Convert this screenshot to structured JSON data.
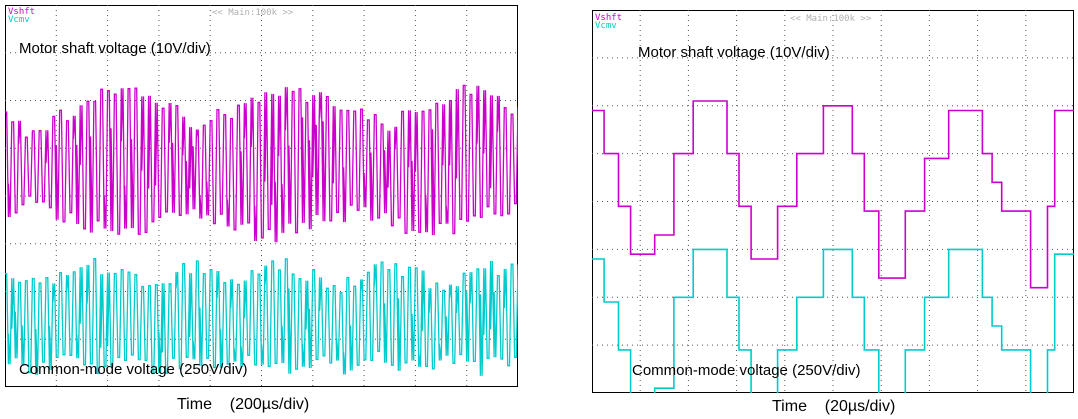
{
  "chart_data": [
    {
      "type": "line",
      "title": "",
      "header": "<< Main:100k >>",
      "channels": [
        {
          "name": "Vshft",
          "color": "#cc00cc"
        },
        {
          "name": "Vcmv",
          "color": "#00cccc"
        }
      ],
      "annotations": [
        "Motor shaft voltage (10V/div)",
        "Common-mode voltage (250V/div)"
      ],
      "xlabel": "Time    (200µs/div)",
      "grid": true,
      "grid_divisions": [
        10,
        8
      ],
      "ylim_div": [
        -4,
        4
      ],
      "xlim_div": [
        0,
        10
      ],
      "series": [
        {
          "name": "Vshft",
          "color": "#cc00cc",
          "x": [
            0,
            0.25,
            0.5,
            0.75,
            1,
            1.25,
            1.5,
            1.75,
            2,
            2.25,
            2.5,
            2.75,
            3,
            3.25,
            3.5,
            3.75,
            4,
            4.25,
            4.5,
            4.75,
            5,
            5.25,
            5.5,
            5.75,
            6,
            6.25,
            6.5,
            6.75,
            7,
            7.25,
            7.5,
            7.75,
            8,
            8.25,
            8.5,
            8.75,
            9,
            9.25,
            9.5,
            9.75,
            10
          ],
          "y_envelope_top": [
            2.0,
            1.7,
            1.5,
            1.6,
            1.8,
            1.9,
            2.1,
            2.2,
            2.3,
            2.4,
            2.4,
            2.3,
            2.2,
            2.0,
            1.8,
            1.7,
            1.8,
            1.9,
            2.0,
            2.2,
            2.3,
            2.4,
            2.4,
            2.3,
            2.3,
            2.2,
            2.1,
            2.0,
            1.9,
            1.8,
            1.7,
            1.8,
            1.9,
            2.0,
            2.2,
            2.3,
            2.4,
            2.3,
            2.2,
            2.1,
            2.0
          ],
          "y_envelope_bottom": [
            -0.5,
            -0.4,
            -0.3,
            -0.4,
            -0.5,
            -0.6,
            -0.7,
            -0.8,
            -0.8,
            -0.9,
            -0.9,
            -0.8,
            -0.7,
            -0.6,
            -0.5,
            -0.5,
            -0.6,
            -0.7,
            -0.8,
            -0.9,
            -1.0,
            -1.0,
            -0.9,
            -0.8,
            -0.7,
            -0.6,
            -0.6,
            -0.5,
            -0.5,
            -0.6,
            -0.7,
            -0.8,
            -0.8,
            -0.9,
            -0.9,
            -0.8,
            -0.7,
            -0.6,
            -0.5,
            -0.5,
            -0.5
          ]
        },
        {
          "name": "Vcmv",
          "color": "#00cccc",
          "x": [
            0,
            0.25,
            0.5,
            0.75,
            1,
            1.25,
            1.5,
            1.75,
            2,
            2.25,
            2.5,
            2.75,
            3,
            3.25,
            3.5,
            3.75,
            4,
            4.25,
            4.5,
            4.75,
            5,
            5.25,
            5.5,
            5.75,
            6,
            6.25,
            6.5,
            6.75,
            7,
            7.25,
            7.5,
            7.75,
            8,
            8.25,
            8.5,
            8.75,
            9,
            9.25,
            9.5,
            9.75,
            10
          ],
          "y_envelope_top": [
            -1.4,
            -1.5,
            -1.7,
            -1.6,
            -1.5,
            -1.4,
            -1.3,
            -1.3,
            -1.4,
            -1.5,
            -1.6,
            -1.7,
            -1.6,
            -1.5,
            -1.4,
            -1.3,
            -1.4,
            -1.5,
            -1.6,
            -1.5,
            -1.4,
            -1.3,
            -1.3,
            -1.4,
            -1.5,
            -1.6,
            -1.7,
            -1.6,
            -1.5,
            -1.4,
            -1.3,
            -1.4,
            -1.5,
            -1.6,
            -1.7,
            -1.6,
            -1.5,
            -1.4,
            -1.3,
            -1.4,
            -1.4
          ],
          "y_envelope_bottom": [
            -3.6,
            -3.7,
            -3.8,
            -3.7,
            -3.6,
            -3.6,
            -3.7,
            -3.8,
            -3.7,
            -3.6,
            -3.6,
            -3.7,
            -3.8,
            -3.7,
            -3.6,
            -3.6,
            -3.7,
            -3.8,
            -3.7,
            -3.6,
            -3.6,
            -3.7,
            -3.8,
            -3.7,
            -3.6,
            -3.6,
            -3.7,
            -3.8,
            -3.7,
            -3.6,
            -3.6,
            -3.7,
            -3.8,
            -3.7,
            -3.6,
            -3.6,
            -3.7,
            -3.8,
            -3.7,
            -3.6,
            -3.6
          ]
        }
      ]
    },
    {
      "type": "line",
      "title": "",
      "header": "<< Main:100k >>",
      "channels": [
        {
          "name": "Vshft",
          "color": "#cc00cc"
        },
        {
          "name": "Vcmv",
          "color": "#00cccc"
        }
      ],
      "annotations": [
        "Motor shaft voltage (10V/div)",
        "Common-mode voltage (250V/div)"
      ],
      "xlabel": "Time    (20µs/div)",
      "grid": true,
      "grid_divisions": [
        10,
        8
      ],
      "ylim_div": [
        -4,
        4
      ],
      "xlim_div": [
        0,
        10
      ],
      "series": [
        {
          "name": "Vshft",
          "color": "#cc00cc",
          "x": [
            0,
            0.25,
            0.25,
            0.55,
            0.55,
            0.8,
            0.8,
            1.3,
            1.3,
            1.7,
            1.7,
            2.1,
            2.1,
            2.8,
            2.8,
            3.05,
            3.05,
            3.3,
            3.3,
            3.85,
            3.85,
            4.25,
            4.25,
            4.8,
            4.8,
            5.4,
            5.4,
            5.65,
            5.65,
            5.95,
            5.95,
            6.5,
            6.5,
            6.9,
            6.9,
            7.4,
            7.4,
            8.1,
            8.1,
            8.3,
            8.3,
            8.5,
            8.5,
            9.1,
            9.1,
            9.45,
            9.45,
            9.6,
            9.6,
            10
          ],
          "y": [
            1.9,
            1.9,
            1.0,
            1.0,
            -0.1,
            -0.1,
            -1.1,
            -1.1,
            -0.7,
            -0.7,
            1.0,
            1.0,
            2.1,
            2.1,
            1.0,
            1.0,
            -0.1,
            -0.1,
            -1.2,
            -1.2,
            -0.1,
            -0.1,
            1.0,
            1.0,
            2.0,
            2.0,
            1.0,
            1.0,
            -0.2,
            -0.2,
            -1.6,
            -1.6,
            -0.2,
            -0.2,
            0.9,
            0.9,
            1.9,
            1.9,
            1.0,
            1.0,
            0.4,
            0.4,
            -0.2,
            -0.2,
            -1.8,
            -1.8,
            -0.1,
            -0.1,
            1.9,
            1.9
          ]
        },
        {
          "name": "Vcmv",
          "color": "#00cccc",
          "x": [
            0,
            0.25,
            0.25,
            0.55,
            0.55,
            0.8,
            0.8,
            1.3,
            1.3,
            1.7,
            1.7,
            2.1,
            2.1,
            2.8,
            2.8,
            3.05,
            3.05,
            3.3,
            3.3,
            3.85,
            3.85,
            4.25,
            4.25,
            4.8,
            4.8,
            5.4,
            5.4,
            5.65,
            5.65,
            5.95,
            5.95,
            6.5,
            6.5,
            6.9,
            6.9,
            7.4,
            7.4,
            8.1,
            8.1,
            8.3,
            8.3,
            8.5,
            8.5,
            9.1,
            9.1,
            9.45,
            9.45,
            9.6,
            9.6,
            10
          ],
          "y": [
            -1.2,
            -1.2,
            -2.1,
            -2.1,
            -3.1,
            -3.1,
            -4.1,
            -4.1,
            -3.9,
            -3.9,
            -2.0,
            -2.0,
            -1.0,
            -1.0,
            -2.0,
            -2.0,
            -3.1,
            -3.1,
            -4.1,
            -4.1,
            -3.1,
            -3.1,
            -2.0,
            -2.0,
            -1.0,
            -1.0,
            -2.0,
            -2.0,
            -3.1,
            -3.1,
            -4.4,
            -4.4,
            -3.1,
            -3.1,
            -2.0,
            -2.0,
            -1.0,
            -1.0,
            -2.0,
            -2.0,
            -2.6,
            -2.6,
            -3.1,
            -3.1,
            -4.6,
            -4.6,
            -3.1,
            -3.1,
            -1.1,
            -1.1
          ]
        }
      ]
    }
  ]
}
